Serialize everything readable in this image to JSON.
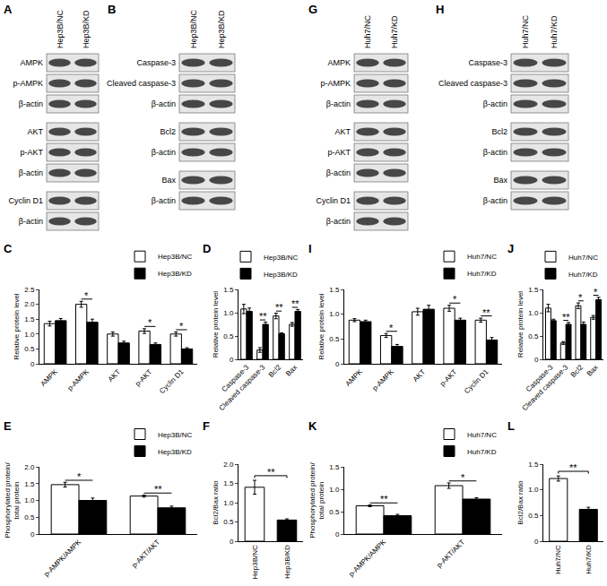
{
  "blots": [
    {
      "panel": "A",
      "lanes": [
        "Hep3B/NC",
        "Hep3B/KD"
      ],
      "groups": [
        [
          "AMPK",
          "p-AMPK",
          "β-actin"
        ],
        [
          "AKT",
          "p-AKT",
          "β-actin"
        ],
        [
          "Cyclin D1",
          "β-actin"
        ]
      ]
    },
    {
      "panel": "B",
      "lanes": [
        "Hep3B/NC",
        "Hep3B/KD"
      ],
      "groups": [
        [
          "Caspase-3",
          "Cleaved caspase-3",
          "β-actin"
        ],
        [
          "Bcl2",
          "β-actin"
        ],
        [
          "Bax",
          "β-actin"
        ]
      ]
    },
    {
      "panel": "G",
      "lanes": [
        "Huh7/NC",
        "Huh7/KD"
      ],
      "groups": [
        [
          "AMPK",
          "p-AMPK",
          "β-actin"
        ],
        [
          "AKT",
          "p-AKT",
          "β-actin"
        ],
        [
          "Cyclin D1",
          "β-actin"
        ]
      ]
    },
    {
      "panel": "H",
      "lanes": [
        "Huh7/NC",
        "Huh7/KD"
      ],
      "groups": [
        [
          "Caspase-3",
          "Cleaved caspase-3",
          "β-actin"
        ],
        [
          "Bcl2",
          "β-actin"
        ],
        [
          "Bax",
          "β-actin"
        ]
      ]
    }
  ],
  "chart_data": [
    {
      "panel": "C",
      "type": "bar",
      "y_label": "Relative protein level",
      "categories": [
        "AMPK",
        "p-AMPK",
        "AKT",
        "p-AKT",
        "Cyclin D1"
      ],
      "series": [
        {
          "name": "Hep3B/NC",
          "color": "#ffffff",
          "values": [
            1.35,
            2.0,
            1.0,
            1.1,
            1.0
          ],
          "errors": [
            0.08,
            0.1,
            0.07,
            0.08,
            0.07
          ]
        },
        {
          "name": "Hep3B/KD",
          "color": "#000000",
          "values": [
            1.45,
            1.4,
            0.7,
            0.65,
            0.5
          ],
          "errors": [
            0.07,
            0.1,
            0.06,
            0.05,
            0.04
          ]
        }
      ],
      "significance": [
        null,
        "*",
        null,
        "*",
        "*"
      ],
      "ylim": [
        0,
        2.5
      ],
      "yticks": [
        0,
        0.5,
        {
          "value": 1,
          "label": "1.0"
        },
        1.5,
        {
          "value": 2,
          "label": "2.0"
        },
        2.5
      ],
      "legend": "top right",
      "grid": false
    },
    {
      "panel": "D",
      "type": "bar",
      "y_label": "Relative protein level",
      "categories": [
        "Caspase-3",
        "Cleaved caspase-3",
        "Bcl2",
        "Bax"
      ],
      "series": [
        {
          "name": "Hep3B/NC",
          "color": "#ffffff",
          "values": [
            1.08,
            0.2,
            0.93,
            0.75
          ],
          "errors": [
            0.1,
            0.05,
            0.06,
            0.04
          ]
        },
        {
          "name": "Hep3B/KD",
          "color": "#000000",
          "values": [
            1.03,
            0.75,
            0.55,
            1.03
          ],
          "errors": [
            0.07,
            0.05,
            0.02,
            0.04
          ]
        }
      ],
      "significance": [
        null,
        "**",
        "**",
        "**"
      ],
      "ylim": [
        0,
        1.5
      ],
      "yticks": [
        0,
        0.5,
        {
          "value": 1,
          "label": "1.0"
        },
        1.5
      ],
      "legend": "top right",
      "grid": false
    },
    {
      "panel": "I",
      "type": "bar",
      "y_label": "Relative protein level",
      "categories": [
        "AMPK",
        "p-AMPK",
        "AKT",
        "p-AKT",
        "Cyclin D1"
      ],
      "series": [
        {
          "name": "Huh7/NC",
          "color": "#ffffff",
          "values": [
            0.88,
            0.57,
            1.05,
            1.12,
            0.88
          ],
          "errors": [
            0.03,
            0.04,
            0.07,
            0.06,
            0.04
          ]
        },
        {
          "name": "Huh7/KD",
          "color": "#000000",
          "values": [
            0.85,
            0.35,
            1.1,
            0.88,
            0.48
          ],
          "errors": [
            0.03,
            0.04,
            0.08,
            0.04,
            0.05
          ]
        }
      ],
      "significance": [
        null,
        "*",
        null,
        "*",
        "**"
      ],
      "ylim": [
        0,
        1.5
      ],
      "yticks": [
        0,
        0.5,
        {
          "value": 1,
          "label": "1.0"
        },
        1.5
      ],
      "legend": "top right",
      "grid": false
    },
    {
      "panel": "J",
      "type": "bar",
      "y_label": "Relative protein level",
      "categories": [
        "Caspase-3",
        "Cleaved caspase-3",
        "Bcl2",
        "Bax"
      ],
      "series": [
        {
          "name": "Huh7/NC",
          "color": "#ffffff",
          "values": [
            1.1,
            0.35,
            1.15,
            0.9
          ],
          "errors": [
            0.08,
            0.03,
            0.06,
            0.04
          ]
        },
        {
          "name": "Huh7/KD",
          "color": "#000000",
          "values": [
            0.83,
            0.75,
            0.75,
            1.28
          ],
          "errors": [
            0.03,
            0.04,
            0.05,
            0.05
          ]
        }
      ],
      "significance": [
        null,
        "**",
        "*",
        "*"
      ],
      "ylim": [
        0,
        1.5
      ],
      "yticks": [
        0,
        0.5,
        {
          "value": 1,
          "label": "1.0"
        },
        1.5
      ],
      "legend": "top right",
      "grid": false
    },
    {
      "panel": "E",
      "type": "bar",
      "y_label": "Phosphorylated protein/\ntotal protein",
      "categories": [
        "p-AMPK/AMPK",
        "p-AKT/AKT"
      ],
      "series": [
        {
          "name": "Hep3B/NC",
          "color": "#ffffff",
          "values": [
            1.47,
            1.13
          ],
          "errors": [
            0.07,
            0.03
          ]
        },
        {
          "name": "Hep3B/KD",
          "color": "#000000",
          "values": [
            1.0,
            0.78
          ],
          "errors": [
            0.07,
            0.05
          ]
        }
      ],
      "significance": [
        "*",
        "**"
      ],
      "ylim": [
        0,
        2
      ],
      "yticks": [
        0,
        0.5,
        {
          "value": 1,
          "label": "1.0"
        },
        1.5,
        {
          "value": 2,
          "label": "2.0"
        }
      ],
      "legend": "top right",
      "grid": false
    },
    {
      "panel": "F",
      "type": "bar",
      "y_label": "Bcl2/Bax ratio",
      "categories": [
        "Hep3B/NC",
        "Hep3B/KD"
      ],
      "values": [
        1.4,
        0.55
      ],
      "errors": [
        0.18,
        0.03
      ],
      "colors": [
        "#ffffff",
        "#000000"
      ],
      "significance": [
        "**"
      ],
      "ylim": [
        0,
        2
      ],
      "yticks": [
        0,
        0.5,
        {
          "value": 1,
          "label": "1.0"
        },
        1.5,
        {
          "value": 2,
          "label": "2.0"
        }
      ],
      "grid": false
    },
    {
      "panel": "K",
      "type": "bar",
      "y_label": "Phosphorylated protein/\ntotal protein",
      "categories": [
        "p-AMPK/AMPK",
        "p-AKT/AKT"
      ],
      "series": [
        {
          "name": "Huh7/NC",
          "color": "#ffffff",
          "values": [
            0.63,
            1.08
          ],
          "errors": [
            0.02,
            0.06
          ]
        },
        {
          "name": "Huh7/KD",
          "color": "#000000",
          "values": [
            0.41,
            0.78
          ],
          "errors": [
            0.03,
            0.03
          ]
        }
      ],
      "significance": [
        "**",
        "*"
      ],
      "ylim": [
        0,
        1.5
      ],
      "yticks": [
        0,
        0.5,
        {
          "value": 1,
          "label": "1.0"
        },
        1.5
      ],
      "legend": "top right",
      "grid": false
    },
    {
      "panel": "L",
      "type": "bar",
      "y_label": "Bcl2/Bax ratio",
      "categories": [
        "Huh7/NC",
        "Huh7/KD"
      ],
      "values": [
        1.22,
        0.62
      ],
      "errors": [
        0.05,
        0.04
      ],
      "colors": [
        "#ffffff",
        "#000000"
      ],
      "significance": [
        "**"
      ],
      "ylim": [
        0,
        1.5
      ],
      "yticks": [
        0,
        0.5,
        {
          "value": 1,
          "label": "1.0"
        },
        1.5
      ],
      "grid": false
    }
  ]
}
